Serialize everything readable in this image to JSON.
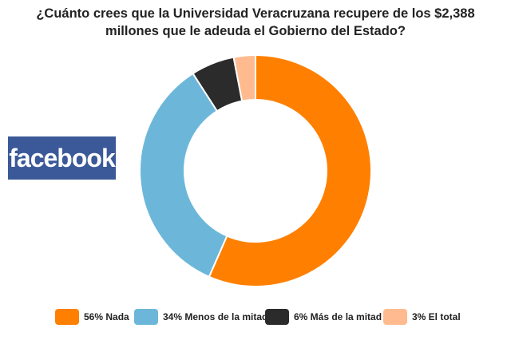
{
  "title": {
    "line1": "¿Cuánto crees que la Universidad Veracruzana recupere de los $2,388",
    "line2": "millones que le adeuda el Gobierno del Estado?"
  },
  "logo": {
    "text": "facebook",
    "color": "#3b5998"
  },
  "chart_data": {
    "type": "pie",
    "title": "¿Cuánto crees que la Universidad Veracruzana recupere de los $2,388 millones que le adeuda el Gobierno del Estado?",
    "legend_position": "bottom",
    "slices": [
      {
        "label": "56% Nada",
        "value": 56,
        "color": "#ff8000"
      },
      {
        "label": "34% Menos de la mitad",
        "value": 34,
        "color": "#6cb7d9"
      },
      {
        "label": "6% Más de la mitad",
        "value": 6,
        "color": "#2b2b2b"
      },
      {
        "label": "3% El total",
        "value": 3,
        "color": "#ffbb8f"
      }
    ]
  }
}
